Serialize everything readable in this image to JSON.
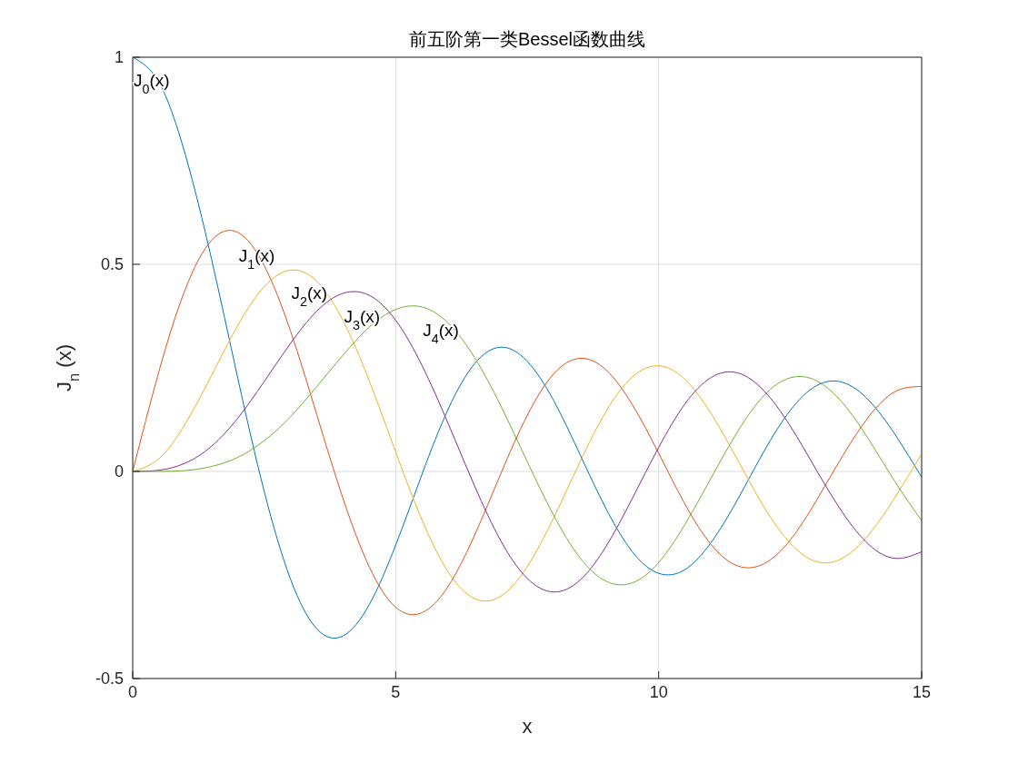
{
  "chart_data": {
    "type": "line",
    "title": "前五阶第一类Bessel函数曲线",
    "xlabel": "x",
    "ylabel": "J$_{n}$ (x)",
    "x": [
      0,
      0.5,
      1,
      1.5,
      2,
      2.5,
      3,
      3.5,
      4,
      4.5,
      5,
      5.5,
      6,
      6.5,
      7,
      7.5,
      8,
      8.5,
      9,
      9.5,
      10,
      10.5,
      11,
      11.5,
      12,
      12.5,
      13,
      13.5,
      14,
      14.5,
      15
    ],
    "series": [
      {
        "name": "J$_{0}$(x)",
        "color": "#0072bd",
        "values": [
          1,
          0.939,
          0.765,
          0.512,
          0.224,
          -0.048,
          -0.26,
          -0.38,
          -0.397,
          -0.321,
          -0.178,
          -0.007,
          0.151,
          0.26,
          0.3,
          0.266,
          0.172,
          0.042,
          -0.09,
          -0.194,
          -0.246,
          -0.237,
          -0.171,
          -0.068,
          0.048,
          0.147,
          0.207,
          0.215,
          0.171,
          0.088,
          -0.014
        ]
      },
      {
        "name": "J$_{1}$(x)",
        "color": "#d95319",
        "values": [
          0,
          0.242,
          0.44,
          0.558,
          0.577,
          0.497,
          0.339,
          0.137,
          -0.066,
          -0.231,
          -0.328,
          -0.341,
          -0.277,
          -0.154,
          -0.005,
          0.135,
          0.235,
          0.273,
          0.245,
          0.161,
          0.044,
          -0.079,
          -0.177,
          -0.228,
          -0.223,
          -0.166,
          -0.07,
          0.038,
          0.133,
          0.193,
          0.205
        ]
      },
      {
        "name": "J$_{2}$(x)",
        "color": "#edb120",
        "values": [
          0,
          0.031,
          0.115,
          0.232,
          0.353,
          0.446,
          0.486,
          0.459,
          0.364,
          0.218,
          0.047,
          -0.117,
          -0.243,
          -0.307,
          -0.301,
          -0.23,
          -0.113,
          0.022,
          0.145,
          0.228,
          0.255,
          0.222,
          0.139,
          0.028,
          -0.085,
          -0.173,
          -0.218,
          -0.209,
          -0.152,
          -0.061,
          0.042
        ]
      },
      {
        "name": "J$_{3}$(x)",
        "color": "#7e2f8e",
        "values": [
          0,
          0.003,
          0.02,
          0.061,
          0.129,
          0.217,
          0.309,
          0.387,
          0.43,
          0.425,
          0.365,
          0.256,
          0.115,
          -0.035,
          -0.168,
          -0.258,
          -0.291,
          -0.263,
          -0.181,
          -0.065,
          0.058,
          0.163,
          0.227,
          0.238,
          0.195,
          0.11,
          0.003,
          -0.1,
          -0.177,
          -0.21,
          -0.194
        ]
      },
      {
        "name": "J$_{4}$(x)",
        "color": "#77ac30",
        "values": [
          0,
          0.0,
          0.002,
          0.012,
          0.034,
          0.074,
          0.132,
          0.205,
          0.281,
          0.349,
          0.391,
          0.397,
          0.358,
          0.275,
          0.158,
          0.024,
          -0.105,
          -0.208,
          -0.265,
          -0.269,
          -0.22,
          -0.128,
          -0.015,
          0.096,
          0.183,
          0.226,
          0.219,
          0.165,
          0.076,
          -0.026,
          -0.119
        ]
      }
    ],
    "xlim": [
      0,
      15
    ],
    "xticks": [
      0,
      5,
      10,
      15
    ],
    "ylim": [
      -0.5,
      1
    ],
    "yticks": [
      -0.5,
      0,
      0.5,
      1
    ],
    "grid": true,
    "marker": "none",
    "line_style": "solid"
  }
}
